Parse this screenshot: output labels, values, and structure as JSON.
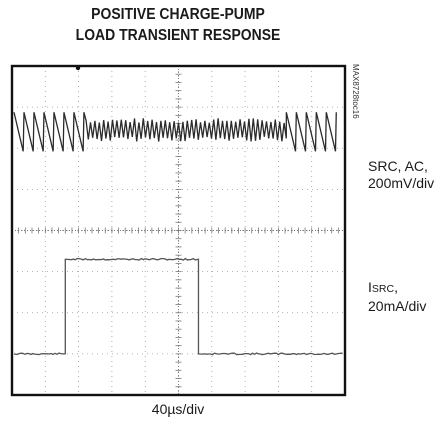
{
  "chart_data": {
    "type": "oscilloscope",
    "title_lines": [
      "POSITIVE CHARGE-PUMP",
      "LOAD TRANSIENT RESPONSE"
    ],
    "part_number": "MAX8728toc16",
    "time_per_div": "40µs/div",
    "divisions": {
      "x": 10,
      "y": 8
    },
    "traces": [
      {
        "label_lines": [
          "SRC, AC,",
          "200mV/div"
        ],
        "coupling": "AC",
        "scale": "200mV/div",
        "waveform": "sawtooth ripple, dense high-frequency ripple while load applied",
        "load_on_ripple_start_div": 2.4,
        "load_on_ripple_end_div": 8.2,
        "ripple_period_div": 0.3,
        "ripple_amplitude_div": 0.95
      },
      {
        "label_prefix": "I",
        "label_subscript": "SRC",
        "label_suffix": ",",
        "label_line2": "20mA/div",
        "scale": "20mA/div",
        "waveform": "current step",
        "low_level_div_from_top": 7.0,
        "high_level_div_from_top": 4.7,
        "step_up_at_div": 1.6,
        "step_down_at_div": 5.6
      }
    ]
  }
}
